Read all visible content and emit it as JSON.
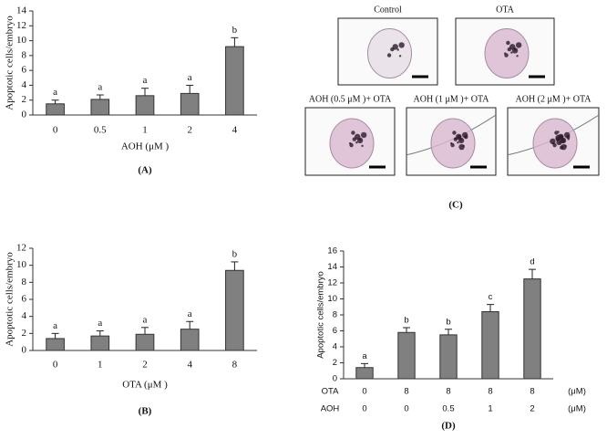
{
  "chart_data": [
    {
      "type": "bar",
      "panel_label": "(A)",
      "y_label": "Apoptotic cells/embryo",
      "x_label": "AOH (μM )",
      "categories": [
        "0",
        "0.5",
        "1",
        "2",
        "4"
      ],
      "values": [
        1.5,
        2.1,
        2.6,
        2.9,
        9.2
      ],
      "errors": [
        0.5,
        0.6,
        1.0,
        1.1,
        1.2
      ],
      "significance_letters": [
        "a",
        "a",
        "a",
        "a",
        "b"
      ],
      "color": "#808080",
      "ylim": [
        0,
        14
      ],
      "yticks": [
        0,
        2,
        4,
        6,
        8,
        10,
        12,
        14
      ]
    },
    {
      "type": "bar",
      "panel_label": "(B)",
      "y_label": "Apoptotic cells/embryo",
      "x_label": "OTA (μM )",
      "categories": [
        "0",
        "1",
        "2",
        "4",
        "8"
      ],
      "values": [
        1.4,
        1.7,
        1.9,
        2.5,
        9.4
      ],
      "errors": [
        0.6,
        0.6,
        0.8,
        0.9,
        1.0
      ],
      "significance_letters": [
        "a",
        "a",
        "a",
        "a",
        "b"
      ],
      "color": "#808080",
      "ylim": [
        0,
        12
      ],
      "yticks": [
        0,
        2,
        4,
        6,
        8,
        10,
        12
      ]
    },
    {
      "type": "bar",
      "panel_label": "(D)",
      "y_label": "Apoptotic cells/embryo",
      "category_rows": [
        {
          "name": "OTA",
          "labels": [
            "0",
            "8",
            "8",
            "8",
            "8"
          ],
          "unit": "(μM)"
        },
        {
          "name": "AOH",
          "labels": [
            "0",
            "0",
            "0.5",
            "1",
            "2"
          ],
          "unit": "(μM)"
        }
      ],
      "values": [
        1.4,
        5.8,
        5.5,
        8.4,
        12.5
      ],
      "errors": [
        0.5,
        0.6,
        0.7,
        0.9,
        1.2
      ],
      "significance_letters": [
        "a",
        "b",
        "b",
        "c",
        "d"
      ],
      "color": "#808080",
      "ylim": [
        0,
        16
      ],
      "yticks": [
        0,
        2,
        4,
        6,
        8,
        10,
        12,
        14,
        16
      ]
    }
  ],
  "image_panel": {
    "panel_label": "(C)",
    "images": [
      {
        "label": "Control"
      },
      {
        "label": "OTA"
      },
      {
        "label": "AOH (0.5 μM )+ OTA"
      },
      {
        "label": "AOH (1 μM )+ OTA"
      },
      {
        "label": "AOH (2 μM )+ OTA"
      }
    ]
  }
}
